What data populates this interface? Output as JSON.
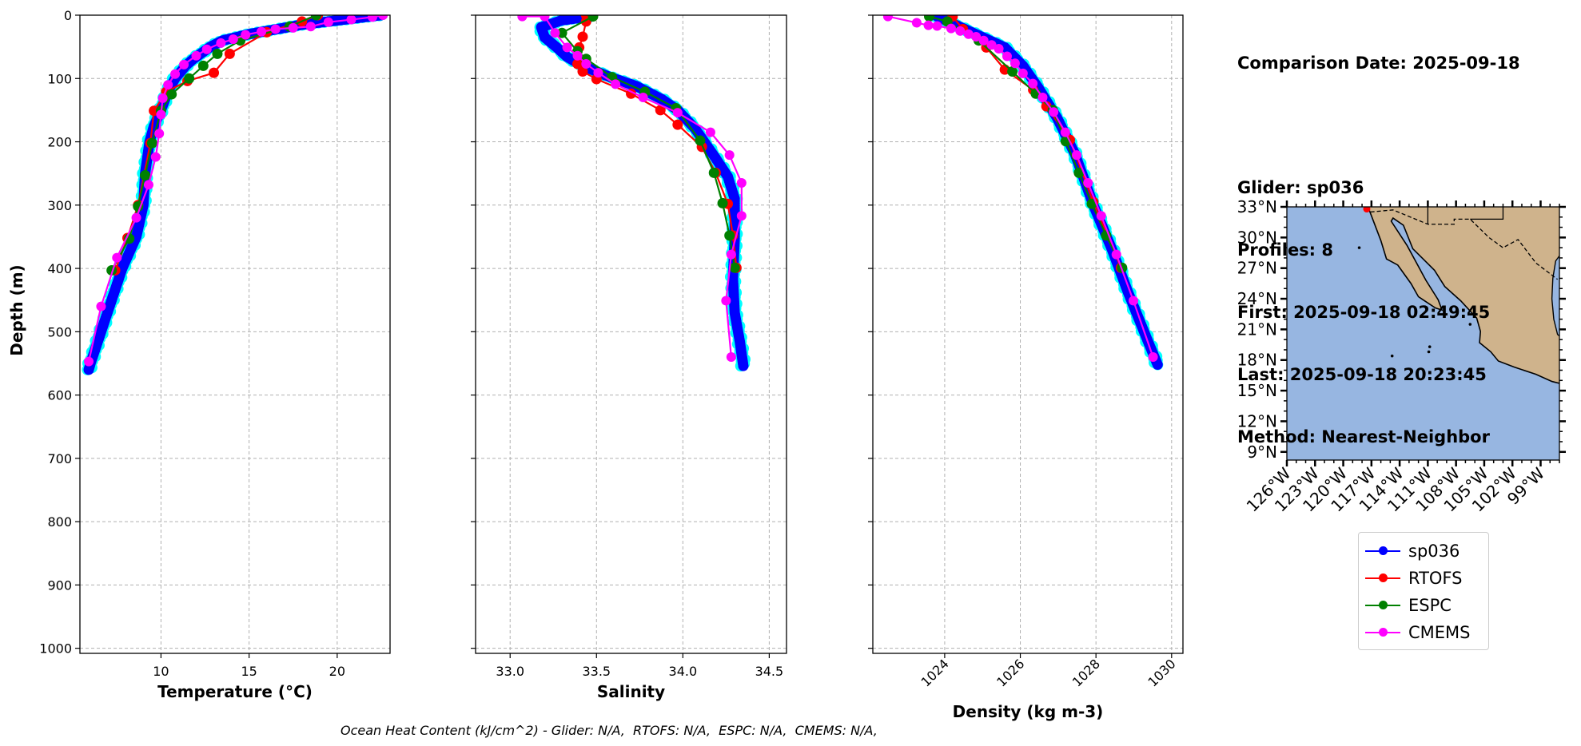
{
  "info": {
    "comparison_date": "Comparison Date: 2025-09-18",
    "glider": "Glider: sp036",
    "profiles": "Profiles: 8",
    "first": "First: 2025-09-18 02:49:45",
    "last": "Last: 2025-09-18 20:23:45",
    "method": "Method: Nearest-Neighbor"
  },
  "footer": "Ocean Heat Content (kJ/cm^2) - Glider: N/A,  RTOFS: N/A,  ESPC: N/A,  CMEMS: N/A,",
  "colors": {
    "sp036": "#0000ff",
    "sp036_profiles": "#00ffff",
    "RTOFS": "#ff0000",
    "ESPC": "#008000",
    "CMEMS": "#ff00ff",
    "ocean": "#97b6e1",
    "land": "#cfb38c"
  },
  "legend": [
    {
      "name": "sp036",
      "color": "#0000ff"
    },
    {
      "name": "RTOFS",
      "color": "#ff0000"
    },
    {
      "name": "ESPC",
      "color": "#008000"
    },
    {
      "name": "CMEMS",
      "color": "#ff00ff"
    }
  ],
  "chart_data": [
    {
      "type": "line",
      "xlabel": "Temperature (°C)",
      "ylabel": "Depth (m)",
      "xlim": [
        5.4,
        23
      ],
      "ylim": [
        1008,
        0
      ],
      "xticks": [
        10,
        15,
        20
      ],
      "yticks": [
        0,
        100,
        200,
        300,
        400,
        500,
        600,
        700,
        800,
        900,
        1000
      ],
      "grid": true,
      "series": [
        {
          "name": "sp036",
          "points": [
            [
              22.5,
              0
            ],
            [
              21,
              5
            ],
            [
              19.5,
              10
            ],
            [
              18,
              15
            ],
            [
              17,
              20
            ],
            [
              16,
              25
            ],
            [
              15,
              30
            ],
            [
              13.5,
              40
            ],
            [
              12.8,
              50
            ],
            [
              12.3,
              60
            ],
            [
              11.8,
              70
            ],
            [
              11.4,
              80
            ],
            [
              11.1,
              90
            ],
            [
              10.8,
              100
            ],
            [
              10.4,
              120
            ],
            [
              10,
              150
            ],
            [
              9.6,
              175
            ],
            [
              9.35,
              200
            ],
            [
              9.1,
              250
            ],
            [
              9.0,
              300
            ],
            [
              8.6,
              350
            ],
            [
              7.8,
              400
            ],
            [
              7.2,
              450
            ],
            [
              6.6,
              500
            ],
            [
              6.0,
              550
            ],
            [
              5.9,
              560
            ]
          ]
        },
        {
          "name": "RTOFS",
          "points": [
            [
              18.9,
              0
            ],
            [
              18,
              10
            ],
            [
              16,
              27
            ],
            [
              13.9,
              61
            ],
            [
              13,
              91
            ],
            [
              11.5,
              104
            ],
            [
              10.3,
              121
            ],
            [
              9.6,
              151
            ],
            [
              9.4,
              202
            ],
            [
              8.7,
              300
            ],
            [
              8.1,
              352
            ],
            [
              7.4,
              403
            ]
          ]
        },
        {
          "name": "ESPC",
          "points": [
            [
              18.8,
              0
            ],
            [
              17.3,
              18
            ],
            [
              14.5,
              40
            ],
            [
              13.2,
              61
            ],
            [
              12.4,
              80
            ],
            [
              11.6,
              100
            ],
            [
              10.6,
              125
            ],
            [
              10,
              151
            ],
            [
              9.5,
              202
            ],
            [
              9.1,
              253
            ],
            [
              8.7,
              302
            ],
            [
              8.2,
              353
            ],
            [
              7.2,
              403
            ]
          ]
        },
        {
          "name": "CMEMS",
          "points": [
            [
              22.6,
              0
            ],
            [
              22,
              3
            ],
            [
              20.8,
              7
            ],
            [
              19.5,
              11
            ],
            [
              18.5,
              18
            ],
            [
              17.5,
              20
            ],
            [
              16.5,
              22
            ],
            [
              15.7,
              26
            ],
            [
              14.8,
              31
            ],
            [
              14.1,
              38
            ],
            [
              13.4,
              44
            ],
            [
              12.6,
              54
            ],
            [
              12,
              64
            ],
            [
              11.3,
              78
            ],
            [
              10.8,
              93
            ],
            [
              10.4,
              110
            ],
            [
              10.1,
              131
            ],
            [
              10,
              157
            ],
            [
              9.9,
              187
            ],
            [
              9.7,
              224
            ],
            [
              9.3,
              268
            ],
            [
              8.6,
              320
            ],
            [
              7.5,
              383
            ],
            [
              6.6,
              460
            ],
            [
              5.9,
              547
            ]
          ]
        }
      ]
    },
    {
      "type": "line",
      "xlabel": "Salinity",
      "xlim": [
        32.8,
        34.6
      ],
      "ylim": [
        1008,
        0
      ],
      "xticks": [
        33.0,
        33.5,
        34.0,
        34.5
      ],
      "grid": true,
      "series": [
        {
          "name": "sp036",
          "points": [
            [
              33.47,
              2
            ],
            [
              33.3,
              8
            ],
            [
              33.18,
              19
            ],
            [
              33.2,
              35
            ],
            [
              33.27,
              51
            ],
            [
              33.33,
              66
            ],
            [
              33.42,
              80
            ],
            [
              33.58,
              98
            ],
            [
              33.73,
              112
            ],
            [
              33.88,
              133
            ],
            [
              33.97,
              150
            ],
            [
              34.07,
              179
            ],
            [
              34.19,
              226
            ],
            [
              34.26,
              255
            ],
            [
              34.3,
              290
            ],
            [
              34.3,
              353
            ],
            [
              34.29,
              417
            ],
            [
              34.3,
              470
            ],
            [
              34.33,
              516
            ],
            [
              34.35,
              554
            ]
          ]
        },
        {
          "name": "RTOFS",
          "points": [
            [
              33.44,
              0
            ],
            [
              33.44,
              10
            ],
            [
              33.42,
              34
            ],
            [
              33.4,
              51
            ],
            [
              33.39,
              77
            ],
            [
              33.42,
              89
            ],
            [
              33.5,
              101
            ],
            [
              33.7,
              124
            ],
            [
              33.87,
              150
            ],
            [
              33.97,
              173
            ],
            [
              34.11,
              208
            ],
            [
              34.19,
              249
            ],
            [
              34.26,
              298
            ],
            [
              34.29,
              348
            ],
            [
              34.31,
              399
            ]
          ]
        },
        {
          "name": "ESPC",
          "points": [
            [
              33.48,
              2
            ],
            [
              33.3,
              28
            ],
            [
              33.39,
              57
            ],
            [
              33.44,
              69
            ],
            [
              33.59,
              98
            ],
            [
              33.78,
              121
            ],
            [
              33.96,
              147
            ],
            [
              34.1,
              198
            ],
            [
              34.18,
              249
            ],
            [
              34.23,
              297
            ],
            [
              34.27,
              348
            ],
            [
              34.3,
              399
            ]
          ]
        },
        {
          "name": "CMEMS",
          "points": [
            [
              33.07,
              2
            ],
            [
              33.2,
              2
            ],
            [
              33.26,
              28
            ],
            [
              33.33,
              51
            ],
            [
              33.39,
              64
            ],
            [
              33.44,
              77
            ],
            [
              33.51,
              91
            ],
            [
              33.61,
              109
            ],
            [
              33.77,
              130
            ],
            [
              33.97,
              154
            ],
            [
              34.16,
              185
            ],
            [
              34.27,
              221
            ],
            [
              34.34,
              265
            ],
            [
              34.34,
              317
            ],
            [
              34.28,
              378
            ],
            [
              34.25,
              451
            ],
            [
              34.28,
              540
            ]
          ]
        }
      ]
    },
    {
      "type": "line",
      "xlabel": "Density (kg m-3)",
      "xlim": [
        1022.1,
        1030.3
      ],
      "ylim": [
        1008,
        0
      ],
      "xticks": [
        1024,
        1026,
        1028,
        1030
      ],
      "grid": true,
      "series": [
        {
          "name": "sp036",
          "points": [
            [
              1023.8,
              2
            ],
            [
              1024.97,
              34
            ],
            [
              1025.59,
              51
            ],
            [
              1026.07,
              80
            ],
            [
              1026.48,
              115
            ],
            [
              1026.97,
              162
            ],
            [
              1027.45,
              220
            ],
            [
              1027.94,
              301
            ],
            [
              1028.43,
              371
            ],
            [
              1028.83,
              435
            ],
            [
              1029.38,
              516
            ],
            [
              1029.63,
              552
            ]
          ]
        },
        {
          "name": "RTOFS",
          "points": [
            [
              1024.21,
              2
            ],
            [
              1024.48,
              22
            ],
            [
              1025.1,
              51
            ],
            [
              1025.59,
              86
            ],
            [
              1026.34,
              118
            ],
            [
              1026.69,
              144
            ],
            [
              1027.31,
              197
            ],
            [
              1027.93,
              295
            ],
            [
              1028.66,
              399
            ]
          ]
        },
        {
          "name": "ESPC",
          "points": [
            [
              1023.59,
              2
            ],
            [
              1024.07,
              10
            ],
            [
              1024.9,
              40
            ],
            [
              1025.79,
              89
            ],
            [
              1026.41,
              124
            ],
            [
              1026.86,
              150
            ],
            [
              1027.2,
              199
            ],
            [
              1027.55,
              249
            ],
            [
              1027.89,
              298
            ],
            [
              1028.27,
              348
            ],
            [
              1028.69,
              399
            ]
          ]
        },
        {
          "name": "CMEMS",
          "points": [
            [
              1022.5,
              2
            ],
            [
              1023.26,
              12
            ],
            [
              1023.57,
              16
            ],
            [
              1023.8,
              17
            ],
            [
              1024.17,
              21
            ],
            [
              1024.41,
              25
            ],
            [
              1024.63,
              30
            ],
            [
              1024.83,
              34
            ],
            [
              1025.03,
              40
            ],
            [
              1025.24,
              47
            ],
            [
              1025.43,
              53
            ],
            [
              1025.65,
              65
            ],
            [
              1025.86,
              76
            ],
            [
              1026.07,
              92
            ],
            [
              1026.33,
              108
            ],
            [
              1026.59,
              130
            ],
            [
              1026.88,
              153
            ],
            [
              1027.19,
              185
            ],
            [
              1027.49,
              221
            ],
            [
              1027.79,
              265
            ],
            [
              1028.14,
              317
            ],
            [
              1028.54,
              378
            ],
            [
              1028.99,
              451
            ],
            [
              1029.51,
              540
            ]
          ]
        }
      ]
    }
  ],
  "map": {
    "lon_range": [
      -126,
      -97
    ],
    "lat_range": [
      8.2,
      33
    ],
    "lat_ticks": [
      "9°N",
      "12°N",
      "15°N",
      "18°N",
      "21°N",
      "24°N",
      "27°N",
      "30°N",
      "33°N"
    ],
    "lon_ticks": [
      "126°W",
      "123°W",
      "120°W",
      "117°W",
      "114°W",
      "111°W",
      "108°W",
      "105°W",
      "102°W",
      "99°W"
    ],
    "glider_location": [
      -117.5,
      32.8
    ]
  }
}
